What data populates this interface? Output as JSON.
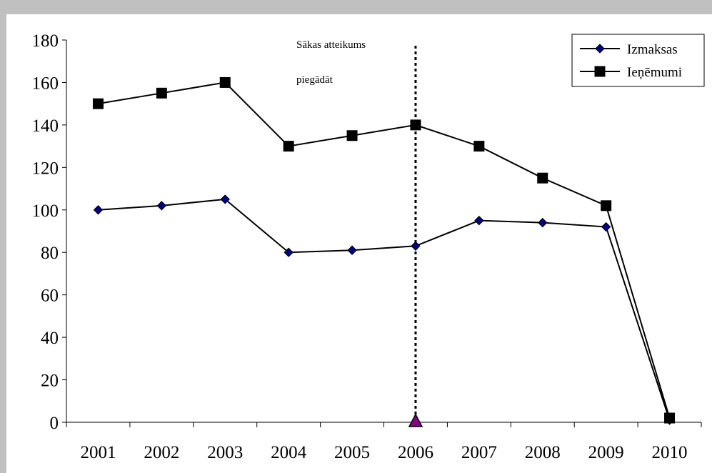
{
  "chart_data": {
    "type": "line",
    "categories": [
      "2001",
      "2002",
      "2003",
      "2004",
      "2005",
      "2006",
      "2007",
      "2008",
      "2009",
      "2010"
    ],
    "series": [
      {
        "name": "Izmaksas",
        "marker": "diamond",
        "color": "#000000",
        "marker_color": "#000080",
        "values": [
          100,
          102,
          105,
          80,
          81,
          83,
          95,
          94,
          92,
          1
        ]
      },
      {
        "name": "Ieņēmumi",
        "marker": "square",
        "color": "#000000",
        "marker_color": "#000000",
        "values": [
          150,
          155,
          160,
          130,
          135,
          140,
          130,
          115,
          102,
          2
        ]
      }
    ],
    "ylim": [
      0,
      180
    ],
    "yticks": [
      "0",
      "20",
      "40",
      "60",
      "80",
      "100",
      "120",
      "140",
      "160",
      "180"
    ],
    "grid": false,
    "legend_position": "top-right",
    "annotation": {
      "lines": [
        "Sākas atteikums",
        "piegādāt"
      ],
      "category": "2006",
      "line_style": "dotted",
      "marker": "triangle",
      "marker_color": "#800080"
    }
  }
}
